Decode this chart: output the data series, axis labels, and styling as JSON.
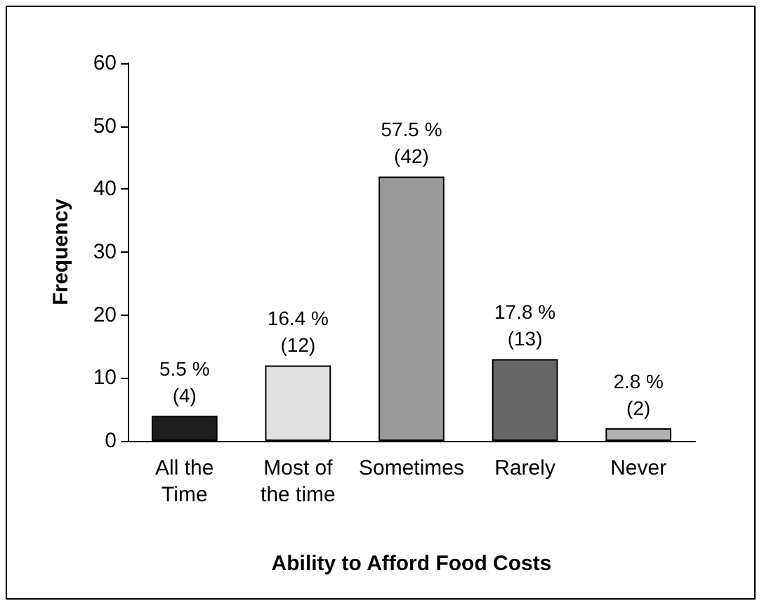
{
  "chart_data": {
    "type": "bar",
    "xlabel": "Ability to Afford Food Costs",
    "ylabel": "Frequency",
    "categories": [
      "All the\nTime",
      "Most of\nthe time",
      "Sometimes",
      "Rarely",
      "Never"
    ],
    "values": [
      4,
      12,
      42,
      13,
      2
    ],
    "colors": [
      "#1e1e1e",
      "#e0e0e0",
      "#9a9a9a",
      "#666666",
      "#b0b0b0"
    ],
    "value_labels": [
      "5.5 %\n(4)",
      "16.4 %\n(12)",
      "57.5 %\n(42)",
      "17.8 %\n(13)",
      "2.8 %\n(2)"
    ],
    "ylim": [
      0,
      60
    ],
    "yticks": [
      0,
      10,
      20,
      30,
      40,
      50,
      60
    ]
  }
}
